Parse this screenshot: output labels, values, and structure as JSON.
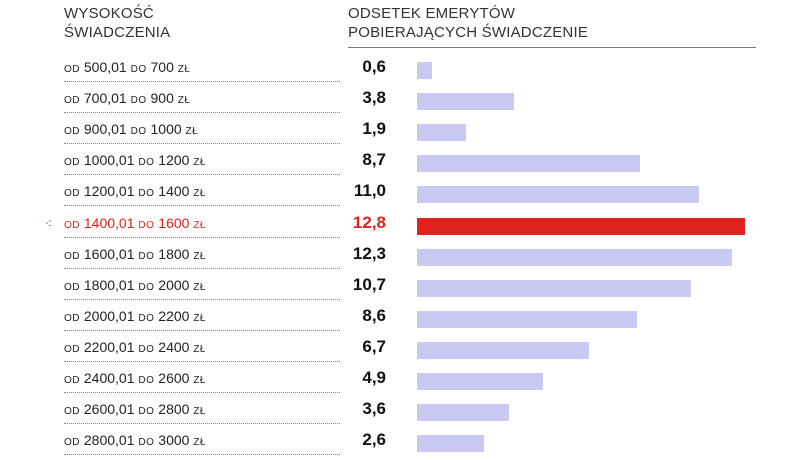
{
  "header": {
    "left": "WYSOKOŚĆ\nŚWIADCZENIA",
    "right": "ODSETEK EMERYTÓW\nPOBIERAJĄCYCH ŚWIADCZENIE"
  },
  "label_words": {
    "from": "OD",
    "to": "DO",
    "unit": "ZŁ"
  },
  "highlight": {
    "color": "#e0221f",
    "marker": "⁖"
  },
  "bar_color": "#c9c9f4",
  "chart_data": {
    "type": "bar",
    "orientation": "horizontal",
    "xlim": [
      0,
      13
    ],
    "categories": [
      {
        "from": "500,01",
        "to": "700"
      },
      {
        "from": "700,01",
        "to": "900"
      },
      {
        "from": "900,01",
        "to": "1000"
      },
      {
        "from": "1000,01",
        "to": "1200"
      },
      {
        "from": "1200,01",
        "to": "1400"
      },
      {
        "from": "1400,01",
        "to": "1600"
      },
      {
        "from": "1600,01",
        "to": "1800"
      },
      {
        "from": "1800,01",
        "to": "2000"
      },
      {
        "from": "2000,01",
        "to": "2200"
      },
      {
        "from": "2200,01",
        "to": "2400"
      },
      {
        "from": "2400,01",
        "to": "2600"
      },
      {
        "from": "2600,01",
        "to": "2800"
      },
      {
        "from": "2800,01",
        "to": "3000"
      }
    ],
    "values": [
      0.6,
      3.8,
      1.9,
      8.7,
      11.0,
      12.8,
      12.3,
      10.7,
      8.6,
      6.7,
      4.9,
      3.6,
      2.6
    ],
    "value_labels": [
      "0,6",
      "3,8",
      "1,9",
      "8,7",
      "11,0",
      "12,8",
      "12,3",
      "10,7",
      "8,6",
      "6,7",
      "4,9",
      "3,6",
      "2,6"
    ],
    "highlight_index": 5
  }
}
